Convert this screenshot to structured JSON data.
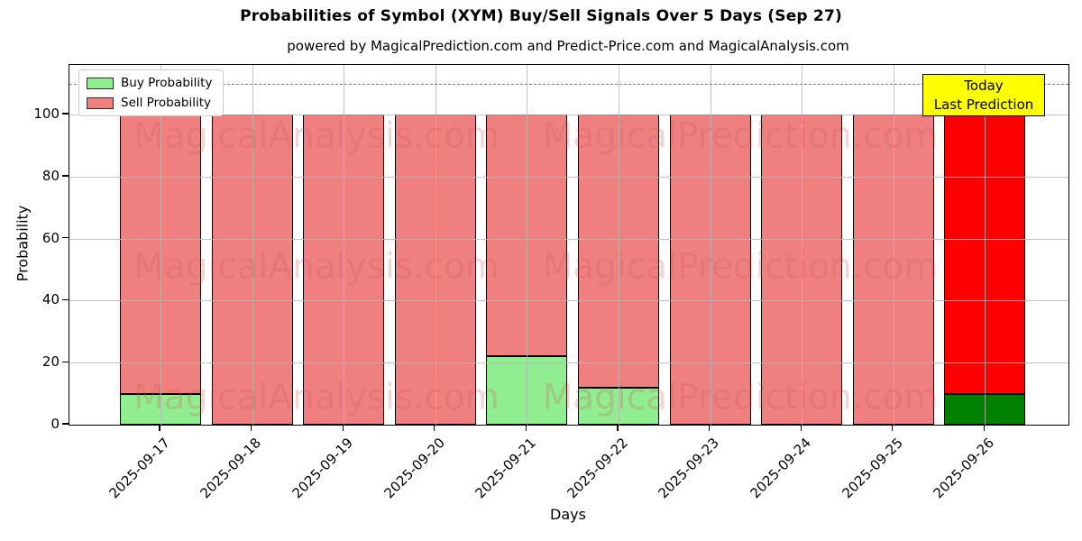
{
  "title": "Probabilities of Symbol (XYM) Buy/Sell Signals Over 5 Days (Sep 27)",
  "subtitle": "powered by MagicalPrediction.com and Predict-Price.com and MagicalAnalysis.com",
  "axes": {
    "ylabel": "Probability",
    "xlabel": "Days"
  },
  "legend": [
    {
      "label": "Buy Probability",
      "color": "#90EE90"
    },
    {
      "label": "Sell Probability",
      "color": "#F08080"
    }
  ],
  "annotation": {
    "line1": "Today",
    "line2": "Last Prediction",
    "bg_color": "#FFFF00"
  },
  "watermarks": [
    "MagicalAnalysis.com",
    "MagicalPrediction.com"
  ],
  "chart_data": {
    "type": "bar",
    "stacked": true,
    "title": "Probabilities of Symbol (XYM) Buy/Sell Signals Over 5 Days (Sep 27)",
    "xlabel": "Days",
    "ylabel": "Probability",
    "categories": [
      "2025-09-17",
      "2025-09-18",
      "2025-09-19",
      "2025-09-20",
      "2025-09-21",
      "2025-09-22",
      "2025-09-23",
      "2025-09-24",
      "2025-09-25",
      "2025-09-26"
    ],
    "series": [
      {
        "name": "Buy Probability",
        "values": [
          10,
          0,
          0,
          0,
          22,
          12,
          0,
          0,
          0,
          10
        ]
      },
      {
        "name": "Sell Probability",
        "values": [
          90,
          100,
          100,
          100,
          78,
          88,
          100,
          100,
          100,
          90
        ]
      }
    ],
    "yticks": [
      0,
      20,
      40,
      60,
      80,
      100
    ],
    "ylim": [
      0,
      116
    ],
    "dashed_line_y": 110,
    "grid": true,
    "legend_position": "upper left",
    "highlight_last_bar_index": 9,
    "bar_colors": {
      "buy": "#90EE90",
      "sell": "#F08080",
      "last_buy": "#008000",
      "last_sell": "#FF0000"
    }
  }
}
